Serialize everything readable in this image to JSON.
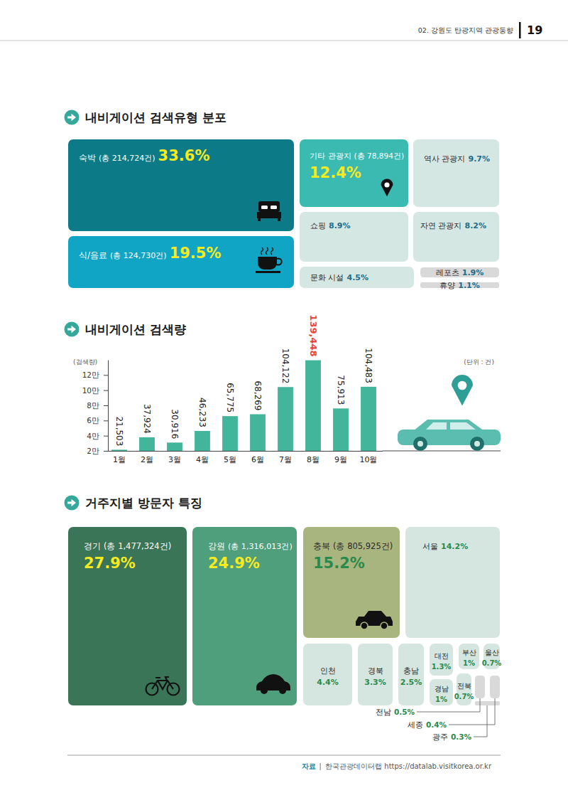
{
  "header": {
    "section": "02. 강원도 탄광지역 관광동향",
    "page": "19"
  },
  "chart_data": [
    {
      "type": "treemap",
      "title": "내비게이션 검색유형 분포",
      "categories": [
        "숙박",
        "식/음료",
        "기타 관광지",
        "역사 관광지",
        "쇼핑",
        "자연 관광지",
        "문화 시설",
        "레포츠",
        "휴양"
      ],
      "values": [
        33.6,
        19.5,
        12.4,
        9.7,
        8.9,
        8.2,
        4.5,
        1.9,
        1.1
      ],
      "value_labels": [
        "33.6%",
        "19.5%",
        "12.4%",
        "9.7%",
        "8.9%",
        "8.2%",
        "4.5%",
        "1.9%",
        "1.1%"
      ],
      "totals": [
        "(총 214,724건)",
        "(총 124,730건)",
        "(총 78,894건)",
        null,
        null,
        null,
        null,
        null,
        null
      ],
      "colors": [
        "#0d7b87",
        "#10a5c5",
        "#3bbab2",
        "#d5e7e3",
        "#d5e7e3",
        "#d5e7e3",
        "#d5e7e3",
        "#d9d9d9",
        "#d9d9d9"
      ],
      "data_labels": true
    },
    {
      "type": "bar",
      "title": "내비게이션 검색량",
      "ylabel": "(검색량)",
      "unit": "(단위 : 건)",
      "categories": [
        "1월",
        "2월",
        "3월",
        "4월",
        "5월",
        "6월",
        "7월",
        "8월",
        "9월",
        "10월"
      ],
      "values": [
        21503,
        37924,
        30916,
        46233,
        65775,
        68269,
        104122,
        139448,
        75913,
        104483
      ],
      "value_labels": [
        "21,503",
        "37,924",
        "30,916",
        "46,233",
        "65,775",
        "68,269",
        "104,122",
        "139,448",
        "75,913",
        "104,483"
      ],
      "color": "#43b59a",
      "ylim": [
        20000,
        140000
      ],
      "yticks": [
        {
          "value": 20000,
          "label": "2만"
        },
        {
          "value": 40000,
          "label": "4만"
        },
        {
          "value": 60000,
          "label": "6만"
        },
        {
          "value": 80000,
          "label": "8만"
        },
        {
          "value": 100000,
          "label": "10만"
        },
        {
          "value": 120000,
          "label": "12만"
        }
      ],
      "grid": false,
      "data_labels": true
    },
    {
      "type": "treemap",
      "title": "거주지별 방문자 특징",
      "categories": [
        "경기",
        "강원",
        "충북",
        "서울",
        "인천",
        "경북",
        "충남",
        "대전",
        "부산",
        "울산",
        "경남",
        "전북",
        "전남",
        "세종",
        "광주"
      ],
      "values": [
        27.9,
        24.9,
        15.2,
        14.2,
        4.4,
        3.3,
        2.5,
        1.3,
        1,
        0.7,
        1,
        0.7,
        0.5,
        0.4,
        0.3
      ],
      "value_labels": [
        "27.9%",
        "24.9%",
        "15.2%",
        "14.2%",
        "4.4%",
        "3.3%",
        "2.5%",
        "1.3%",
        "1%",
        "0.7%",
        "1%",
        "0.7%",
        "0.5%",
        "0.4%",
        "0.3%"
      ],
      "totals": [
        "(총 1,477,324건)",
        "(총 1,316,013건)",
        "(총 805,925건)",
        null,
        null,
        null,
        null,
        null,
        null,
        null,
        null,
        null,
        null,
        null,
        null
      ],
      "colors": [
        "#3a7558",
        "#4f9e7c",
        "#a9b57f",
        "#d4e6df",
        "#d4e6df",
        "#d4e6df",
        "#d4e6df",
        "#d4e6df",
        "#d4e6df",
        "#d4e6df",
        "#d4e6df",
        "#d4e6df",
        "#d9d9d9",
        "#d9d9d9",
        "#d9d9d9"
      ],
      "data_labels": true
    }
  ],
  "source": {
    "label": "자료",
    "text": "한국관광데이터랩 https://datalab.visitkorea.or.kr"
  }
}
